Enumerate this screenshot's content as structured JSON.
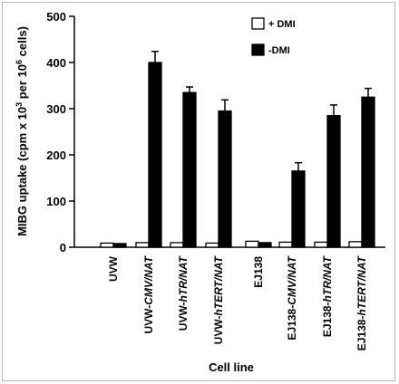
{
  "chart_data": {
    "type": "bar",
    "xlabel": "Cell line",
    "ylabel": "MIBG uptake (cpm x 10³ per 10⁶ cells)",
    "ylabel_parts": {
      "a": "MIBG uptake (cpm x 10",
      "sup1": "3",
      "b": " per 10",
      "sup2": "6",
      "c": " cells)"
    },
    "ylim": [
      0,
      500
    ],
    "yticks": [
      0,
      100,
      200,
      300,
      400,
      500
    ],
    "categories": [
      {
        "prefix": "UVW",
        "italic": ""
      },
      {
        "prefix": "UVW-",
        "italic": "CMV/NAT"
      },
      {
        "prefix": "UVW-",
        "italic": "hTR/NAT"
      },
      {
        "prefix": "UVW-",
        "italic": "hTERT/NAT"
      },
      {
        "prefix": "EJ138",
        "italic": ""
      },
      {
        "prefix": "EJ138-",
        "italic": "CMV/NAT"
      },
      {
        "prefix": "EJ138-",
        "italic": "hTR/NAT"
      },
      {
        "prefix": "EJ138-",
        "italic": "hTERT/NAT"
      }
    ],
    "series": [
      {
        "name": "+ DMI",
        "color": "#ffffff",
        "values": [
          9,
          10,
          10,
          9,
          13,
          11,
          11,
          12
        ],
        "errors": [
          0,
          0,
          0,
          0,
          0,
          0,
          0,
          0
        ]
      },
      {
        "name": "-DMI",
        "color": "#000000",
        "values": [
          8,
          400,
          335,
          295,
          10,
          165,
          285,
          325
        ],
        "errors": [
          0,
          24,
          12,
          24,
          0,
          18,
          23,
          19
        ]
      }
    ],
    "legend_position": "top-right",
    "grid": false
  }
}
